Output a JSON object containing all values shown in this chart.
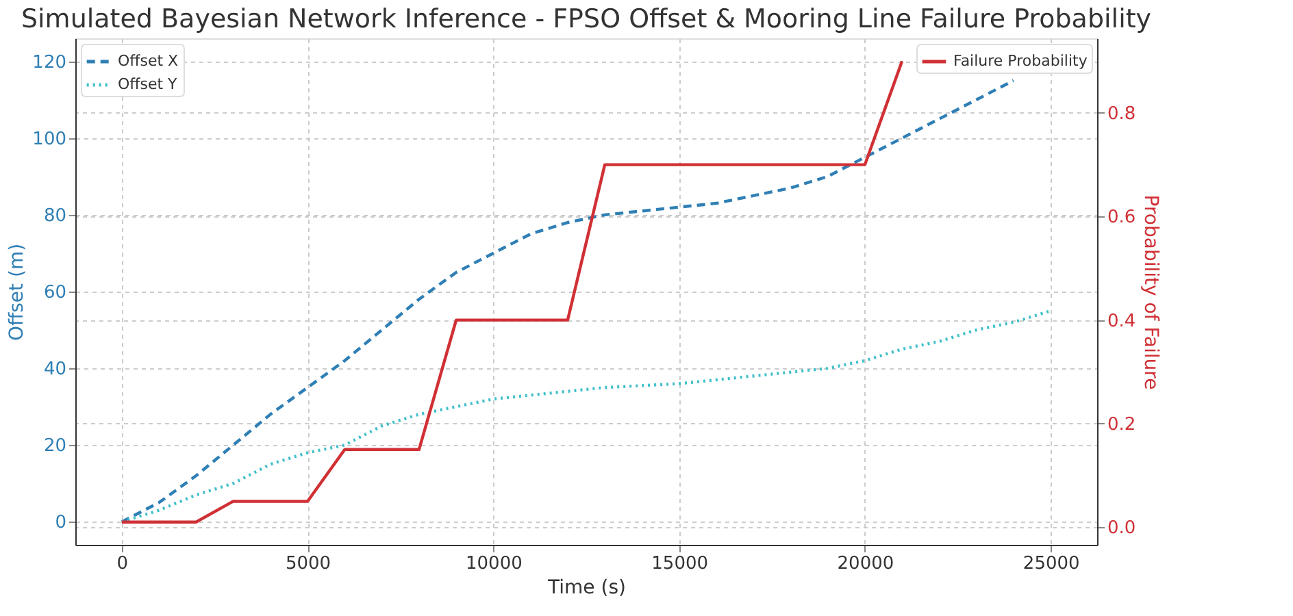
{
  "chart_data": {
    "type": "line",
    "title": "Simulated Bayesian Network Inference - FPSO Offset & Mooring Line Failure Probability",
    "xlabel": "Time (s)",
    "ylabel": "Offset (m)",
    "y2label": "Probability of Failure",
    "xlim": [
      -1250,
      26250
    ],
    "xticks": [
      0,
      5000,
      10000,
      15000,
      20000,
      25000
    ],
    "ylim": [
      -6,
      126
    ],
    "yticks": [
      0,
      20,
      40,
      60,
      80,
      100,
      120
    ],
    "y2lim": [
      -0.034,
      0.944
    ],
    "y2ticks": [
      {
        "value": 0,
        "label": "0.0"
      },
      0.2,
      0.4,
      0.6,
      0.8
    ],
    "grid": true,
    "legend": "top left",
    "series": [
      {
        "name": "Offset X",
        "color": "#2f7fb5",
        "line_style": "dashed",
        "x": [
          0,
          1000,
          2000,
          3000,
          4000,
          5000,
          6000,
          7000,
          8000,
          9000,
          10000,
          11000,
          12000,
          13000,
          14000,
          15000,
          16000,
          17000,
          18000,
          19000,
          20000,
          21000,
          22000,
          23000,
          24000
        ],
        "values": [
          0,
          5,
          12,
          20,
          28,
          35,
          42,
          50,
          58,
          65,
          70,
          75,
          78,
          80,
          81,
          82,
          83,
          85,
          87,
          90,
          95,
          100,
          105,
          110,
          115
        ]
      },
      {
        "name": "Offset Y",
        "color": "#3fbfc9",
        "line_style": "dotted",
        "x": [
          0,
          1000,
          2000,
          3000,
          4000,
          5000,
          6000,
          7000,
          8000,
          9000,
          10000,
          12000,
          13000,
          15000,
          16000,
          19000,
          20000,
          21000,
          22000,
          23000,
          24000,
          25000
        ],
        "values": [
          0,
          3,
          7,
          10,
          15,
          18,
          20,
          25,
          28,
          30,
          32,
          34,
          35,
          36,
          37,
          40,
          42,
          45,
          47,
          50,
          52,
          55
        ]
      },
      {
        "name": "Failure Probability",
        "color": "#d03035",
        "line_style": "solid",
        "axis": "y2",
        "x": [
          0,
          2000,
          3000,
          5000,
          6000,
          8000,
          9000,
          12000,
          13000,
          20000,
          21000
        ],
        "values": [
          0.01,
          0.01,
          0.05,
          0.05,
          0.15,
          0.15,
          0.4,
          0.4,
          0.7,
          0.7,
          0.9
        ]
      }
    ]
  }
}
